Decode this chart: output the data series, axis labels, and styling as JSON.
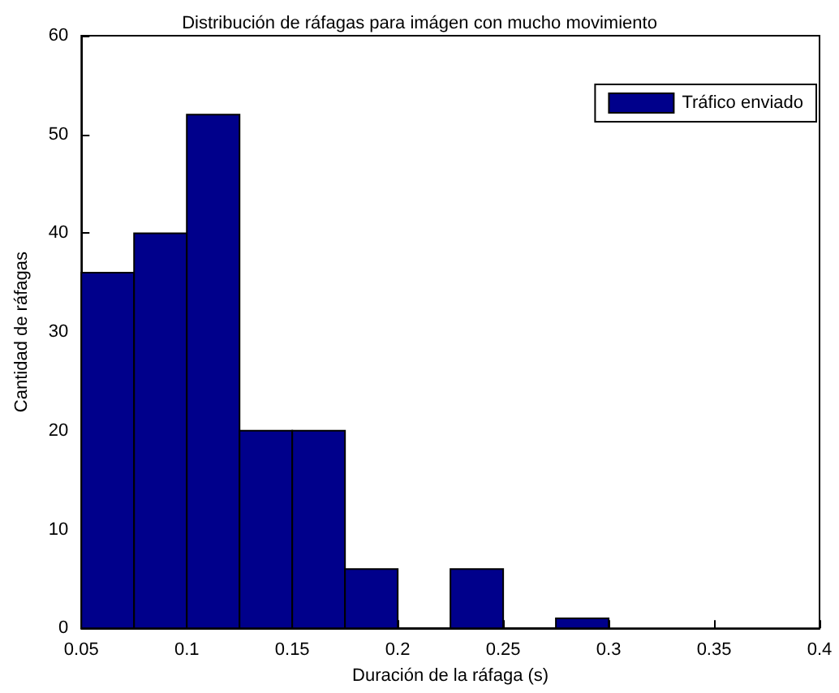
{
  "chart_data": {
    "type": "histogram",
    "title": "Distribución de ráfagas para imágen con mucho movimiento",
    "xlabel": "Duración de la ráfaga (s)",
    "ylabel": "Cantidad de ráfagas",
    "bins": [
      0.05,
      0.075,
      0.1,
      0.125,
      0.15,
      0.175,
      0.2,
      0.225,
      0.25,
      0.275,
      0.3
    ],
    "series": [
      {
        "name": "Tráfico enviado",
        "color": "#00008b",
        "values": [
          36,
          40,
          52,
          20,
          20,
          6,
          0,
          6,
          0,
          1
        ]
      }
    ],
    "xlim": [
      0.05,
      0.4
    ],
    "xticks": [
      0.05,
      0.1,
      0.15,
      0.2,
      0.25,
      0.3,
      0.35,
      0.4
    ],
    "ylim": [
      0,
      60
    ],
    "yticks": [
      0,
      10,
      20,
      30,
      40,
      50,
      60
    ],
    "legend": "top right"
  }
}
